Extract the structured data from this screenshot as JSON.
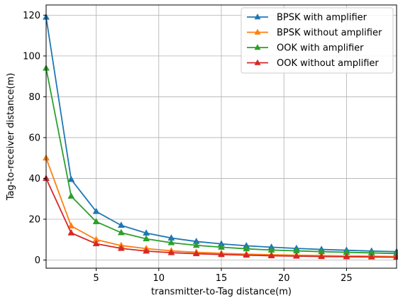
{
  "chart_data": {
    "type": "line",
    "title": "",
    "xlabel": "transmitter-to-Tag distance(m)",
    "ylabel": "Tag-to-receiver distance(m)",
    "xlim": [
      1,
      29
    ],
    "ylim": [
      -4,
      125
    ],
    "xticks": [
      5,
      10,
      15,
      20,
      25
    ],
    "yticks": [
      0,
      20,
      40,
      60,
      80,
      100,
      120
    ],
    "grid": true,
    "legend_position": "top-right",
    "x": [
      1,
      3,
      5,
      7,
      9,
      11,
      13,
      15,
      17,
      19,
      21,
      23,
      25,
      27,
      29
    ],
    "series": [
      {
        "name": "BPSK with amplifier",
        "color": "#1f77b4",
        "marker": "triangle",
        "values": [
          119,
          39.5,
          23.8,
          17,
          13.2,
          10.8,
          9.1,
          7.9,
          7.0,
          6.3,
          5.7,
          5.2,
          4.8,
          4.4,
          4.1
        ]
      },
      {
        "name": "BPSK without amplifier",
        "color": "#ff7f0e",
        "marker": "triangle",
        "values": [
          50,
          16.7,
          10,
          7.1,
          5.6,
          4.5,
          3.8,
          3.3,
          2.9,
          2.6,
          2.4,
          2.2,
          2.0,
          1.9,
          1.7
        ]
      },
      {
        "name": "OOK with amplifier",
        "color": "#2ca02c",
        "marker": "triangle",
        "values": [
          94,
          31.3,
          18.8,
          13.4,
          10.4,
          8.5,
          7.2,
          6.3,
          5.5,
          4.9,
          4.5,
          4.1,
          3.8,
          3.5,
          3.2
        ]
      },
      {
        "name": "OOK without amplifier",
        "color": "#d62728",
        "marker": "triangle",
        "values": [
          40,
          13.3,
          8.0,
          5.7,
          4.4,
          3.6,
          3.1,
          2.7,
          2.4,
          2.1,
          1.9,
          1.7,
          1.6,
          1.5,
          1.4
        ]
      }
    ]
  }
}
